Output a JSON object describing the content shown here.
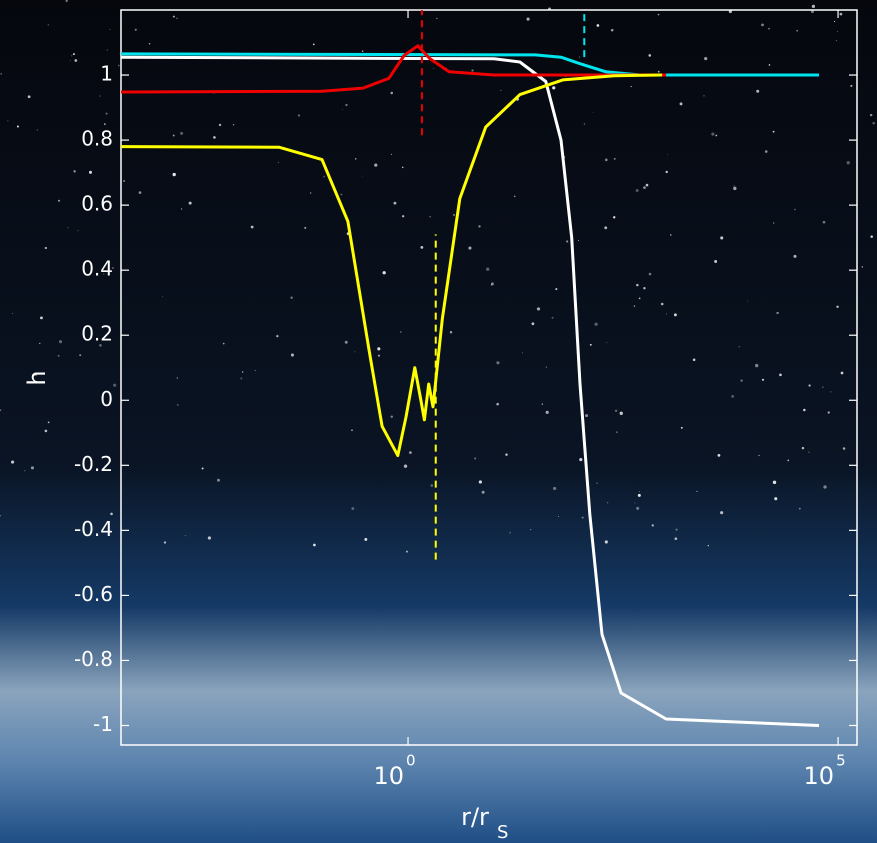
{
  "chart_data": {
    "type": "line",
    "y_label": "h",
    "x_label": "r/r",
    "x_label_sub": "S",
    "xscale": "log",
    "xlim": [
      0.00046,
      166000
    ],
    "ylim": [
      -1.06,
      1.2
    ],
    "xticks": [
      {
        "value": 1,
        "label": "10",
        "exponent": "0"
      },
      {
        "value": 100000,
        "label": "10",
        "exponent": "5"
      }
    ],
    "yticks": [
      -1,
      -0.8,
      -0.6,
      -0.4,
      -0.2,
      0,
      0.2,
      0.4,
      0.6,
      0.8,
      1
    ],
    "series": [
      {
        "color": "#ffffff",
        "x": [
          0.00046,
          10,
          20,
          40,
          60,
          80,
          100,
          130,
          180,
          300,
          1000,
          60000
        ],
        "values": [
          1.055,
          1.05,
          1.04,
          0.98,
          0.8,
          0.5,
          0.05,
          -0.35,
          -0.72,
          -0.9,
          -0.98,
          -1
        ]
      },
      {
        "color": "#00e5ee",
        "x": [
          0.00046,
          30,
          60,
          100,
          200,
          500,
          60000
        ],
        "values": [
          1.065,
          1.062,
          1.055,
          1.035,
          1.01,
          1.0,
          1.0
        ]
      },
      {
        "color": "#ee0000",
        "x": [
          0.00046,
          0.1,
          0.3,
          0.6,
          0.9,
          1.3,
          1.8,
          3,
          10,
          1000
        ],
        "values": [
          0.948,
          0.95,
          0.96,
          0.99,
          1.06,
          1.09,
          1.05,
          1.01,
          1.0,
          1.0
        ]
      },
      {
        "color": "#ffff00",
        "x": [
          0.00046,
          0.0316,
          0.1,
          0.2,
          0.355,
          0.5,
          0.76,
          0.95,
          1.2,
          1.41,
          1.55,
          1.74,
          1.95,
          2.5,
          4,
          8,
          20,
          63,
          250,
          900
        ],
        "values": [
          0.78,
          0.778,
          0.74,
          0.55,
          0.15,
          -0.08,
          -0.17,
          -0.05,
          0.1,
          0.0,
          -0.06,
          0.05,
          -0.02,
          0.25,
          0.62,
          0.84,
          0.94,
          0.985,
          0.998,
          1.0
        ]
      }
    ],
    "vlines": [
      {
        "x": 112,
        "y": [
          1.055,
          1.2
        ],
        "color": "#00e5ee"
      },
      {
        "x": 1.45,
        "y": [
          0.815,
          1.2
        ],
        "color": "#ee0000"
      },
      {
        "x": 2.1,
        "y": [
          -0.49,
          0.51
        ],
        "color": "#ffff00"
      }
    ]
  }
}
